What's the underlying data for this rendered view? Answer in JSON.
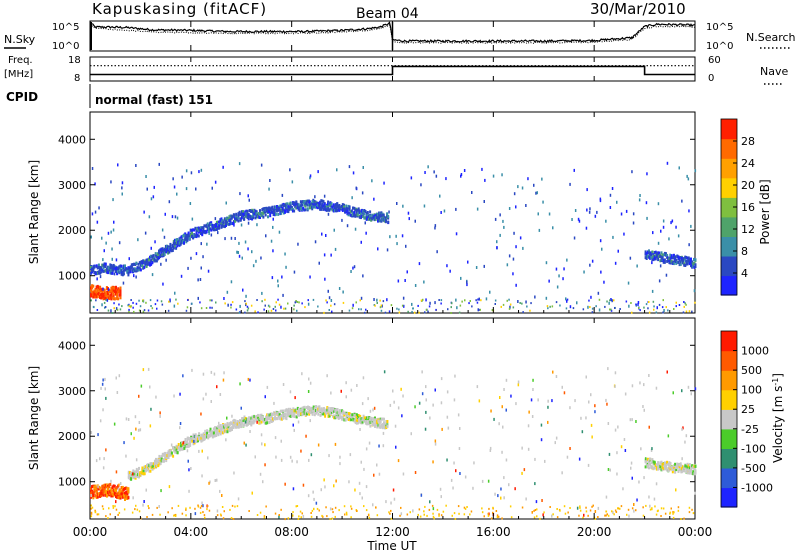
{
  "header": {
    "radar": "Kapuskasing (fitACF)",
    "beam": "Beam 04",
    "date": "30/Mar/2010"
  },
  "time_axis": {
    "ticks": [
      "00:00",
      "04:00",
      "08:00",
      "12:00",
      "16:00",
      "20:00",
      "00:00"
    ],
    "label": "Time UT"
  },
  "cpid_text": "normal (fast) 151",
  "chart_data": [
    {
      "id": "noise",
      "type": "line",
      "left_label": "N.Sky",
      "right_label": "N.Search",
      "left_ticks": [
        "10^5",
        "10^0"
      ],
      "right_ticks": [
        "10^5",
        "10^0"
      ],
      "x_range_hours": [
        0,
        24
      ],
      "scale": "log",
      "series": [
        {
          "style": "solid",
          "x": [
            0,
            0.2,
            0.8,
            1.5,
            2.5,
            4,
            5.5,
            7,
            8.5,
            10,
            11,
            11.5,
            11.9,
            12,
            12.5,
            14,
            16,
            18,
            20,
            21.5,
            22,
            22.5,
            23.5,
            24
          ],
          "log10_y": [
            5.0,
            4.1,
            4.1,
            4.0,
            3.6,
            3.5,
            3.3,
            3.3,
            3.3,
            3.5,
            3.8,
            4.1,
            4.8,
            1.8,
            1.6,
            1.6,
            1.6,
            1.6,
            1.7,
            2.2,
            4.2,
            4.6,
            4.5,
            4.4
          ]
        },
        {
          "style": "dotted",
          "x": [
            0,
            0.2,
            0.8,
            1.5,
            2.5,
            4,
            5.5,
            7,
            8.5,
            10,
            11,
            11.5,
            11.9,
            12,
            12.5,
            14,
            16,
            18,
            20,
            21.5,
            22,
            22.5,
            23.5,
            24
          ],
          "log10_y": [
            4.6,
            3.9,
            3.7,
            3.5,
            3.2,
            3.1,
            3.0,
            3.0,
            3.0,
            3.2,
            3.5,
            3.9,
            4.4,
            1.4,
            1.3,
            1.3,
            1.3,
            1.3,
            1.4,
            1.9,
            3.9,
            4.2,
            4.2,
            4.1
          ]
        }
      ]
    },
    {
      "id": "frequency",
      "type": "line",
      "left_label_line1": "Freq.",
      "left_label_line2": "[MHz]",
      "right_label": "Nave",
      "left_ticks": [
        18,
        8
      ],
      "right_ticks": [
        60,
        0
      ],
      "x_range_hours": [
        0,
        24
      ],
      "ylim_left": [
        8,
        18
      ],
      "ylim_right": [
        0,
        60
      ],
      "series": [
        {
          "name": "Freq. [MHz]",
          "style": "solid",
          "x": [
            0,
            12,
            12,
            22,
            22,
            24
          ],
          "y": [
            10.5,
            10.5,
            14.2,
            14.2,
            10.5,
            10.5
          ]
        },
        {
          "name": "Nave",
          "style": "dotted",
          "x": [
            0,
            24
          ],
          "y": [
            39,
            39
          ]
        }
      ]
    },
    {
      "id": "power",
      "type": "heatmap",
      "ylabel": "Slant Range [km]",
      "yticks": [
        1000,
        2000,
        3000,
        4000
      ],
      "ylim": [
        180,
        4600
      ],
      "x_range_hours": [
        0,
        24
      ],
      "colorbar": {
        "label": "Power [dB]",
        "ticks": [
          "4",
          "8",
          "12",
          "16",
          "20",
          "24",
          "28"
        ],
        "colors": [
          "#1e24ff",
          "#2a48c2",
          "#3a8fa8",
          "#4fa36a",
          "#7fbf3f",
          "#ffd000",
          "#ffa000",
          "#ff6a00",
          "#ff2000"
        ],
        "range": [
          0,
          32
        ]
      },
      "features": [
        {
          "x": [
            0.0,
            0.0,
            0.5,
            1.0,
            1.5,
            2.2,
            3.0,
            4.0,
            5.0,
            6.0,
            7.0,
            8.0,
            9.0,
            10.0,
            11.0,
            11.8
          ],
          "y": [
            1150,
            1150,
            1200,
            1150,
            1150,
            1300,
            1600,
            1950,
            2150,
            2350,
            2420,
            2550,
            2600,
            2500,
            2350,
            2300
          ],
          "value": 7
        },
        {
          "x": [
            22.0,
            22.5,
            23.0,
            23.5,
            24.0
          ],
          "y": [
            1500,
            1450,
            1400,
            1350,
            1300
          ],
          "value": 8
        },
        {
          "x": [
            0.0,
            0.5,
            1.2
          ],
          "y": [
            700,
            650,
            650
          ],
          "value": 26
        }
      ]
    },
    {
      "id": "velocity",
      "type": "heatmap",
      "ylabel": "Slant Range [km]",
      "yticks": [
        1000,
        2000,
        3000,
        4000
      ],
      "ylim": [
        180,
        4600
      ],
      "x_range_hours": [
        0,
        24
      ],
      "colorbar": {
        "label": "Velocity [m s^-1]",
        "ticks": [
          "1000",
          "500",
          "100",
          "25",
          "-25",
          "-100",
          "-500",
          "-1000"
        ],
        "colors": [
          "#1e24ff",
          "#2e5bd8",
          "#2f8f70",
          "#4bcc2a",
          "#c8c8c8",
          "#ffd000",
          "#ff9a00",
          "#ff5a00",
          "#ff1a00"
        ]
      },
      "features": [
        {
          "x": [
            1.5,
            2.2,
            3.0,
            4.0,
            5.0,
            6.0,
            7.0,
            8.0,
            9.0,
            10.0,
            11.0,
            11.8
          ],
          "y": [
            1150,
            1300,
            1600,
            1950,
            2150,
            2350,
            2420,
            2550,
            2600,
            2500,
            2350,
            2300
          ],
          "value": 0
        },
        {
          "x": [
            22.0,
            23.0,
            24.0
          ],
          "y": [
            1450,
            1350,
            1300
          ],
          "value": 0
        },
        {
          "x": [
            0.0,
            0.8,
            1.5
          ],
          "y": [
            800,
            850,
            750
          ],
          "value": -300
        }
      ]
    }
  ]
}
